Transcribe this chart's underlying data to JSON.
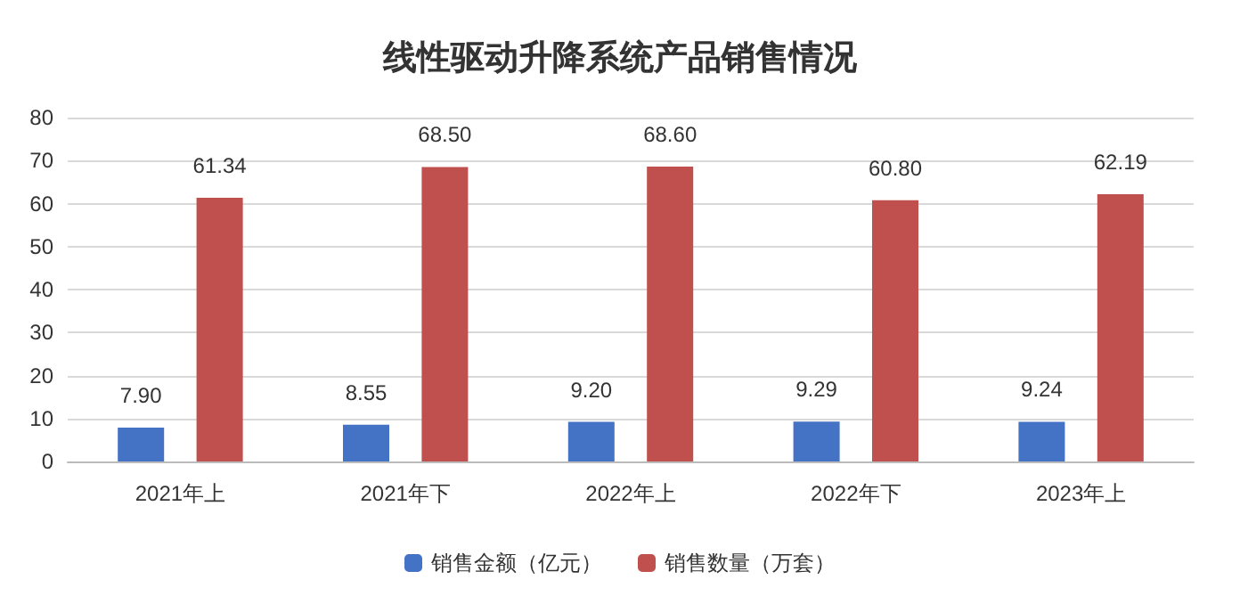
{
  "chart_data": {
    "type": "bar",
    "title": "线性驱动升降系统产品销售情况",
    "categories": [
      "2021年上",
      "2021年下",
      "2022年上",
      "2022年下",
      "2023年上"
    ],
    "series": [
      {
        "name": "销售金额（亿元）",
        "color": "#4472c4",
        "values": [
          7.9,
          8.55,
          9.2,
          9.29,
          9.24
        ],
        "value_labels": [
          "7.90",
          "8.55",
          "9.20",
          "9.29",
          "9.24"
        ]
      },
      {
        "name": "销售数量（万套）",
        "color": "#c0504d",
        "values": [
          61.34,
          68.5,
          68.6,
          60.8,
          62.19
        ],
        "value_labels": [
          "61.34",
          "68.50",
          "68.60",
          "60.80",
          "62.19"
        ]
      }
    ],
    "ylim": [
      0,
      80
    ],
    "yticks": [
      0,
      10,
      20,
      30,
      40,
      50,
      60,
      70,
      80
    ],
    "grid": "y",
    "legend": "bottom"
  }
}
